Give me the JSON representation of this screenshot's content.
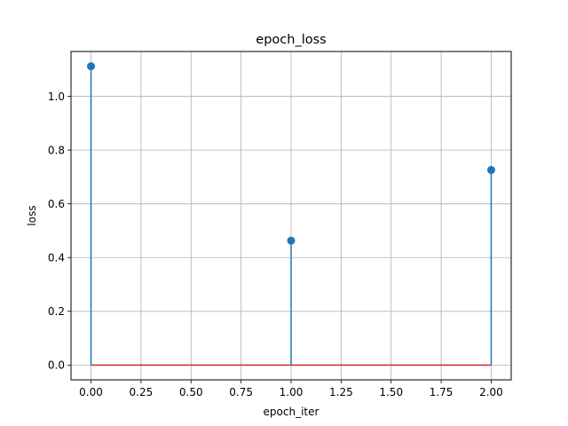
{
  "chart_data": {
    "type": "stem",
    "title": "epoch_loss",
    "xlabel": "epoch_iter",
    "ylabel": "loss",
    "x": [
      0.0,
      1.0,
      2.0
    ],
    "series": [
      {
        "values": [
          1.112,
          0.463,
          0.726
        ]
      }
    ],
    "xlim": [
      -0.1,
      2.1
    ],
    "ylim": [
      -0.055,
      1.167
    ],
    "xticks": [
      0.0,
      0.25,
      0.5,
      0.75,
      1.0,
      1.25,
      1.5,
      1.75,
      2.0
    ],
    "xtick_labels": [
      "0.00",
      "0.25",
      "0.50",
      "0.75",
      "1.00",
      "1.25",
      "1.50",
      "1.75",
      "2.00"
    ],
    "yticks": [
      0.0,
      0.2,
      0.4,
      0.6,
      0.8,
      1.0
    ],
    "ytick_labels": [
      "0.0",
      "0.2",
      "0.4",
      "0.6",
      "0.8",
      "1.0"
    ],
    "baseline": 0.0,
    "grid": true,
    "colors": {
      "stem": "#1f77b4",
      "marker": "#1f77b4",
      "baseline": "#d62728",
      "grid": "#b0b0b0",
      "axes": "#000000"
    }
  }
}
